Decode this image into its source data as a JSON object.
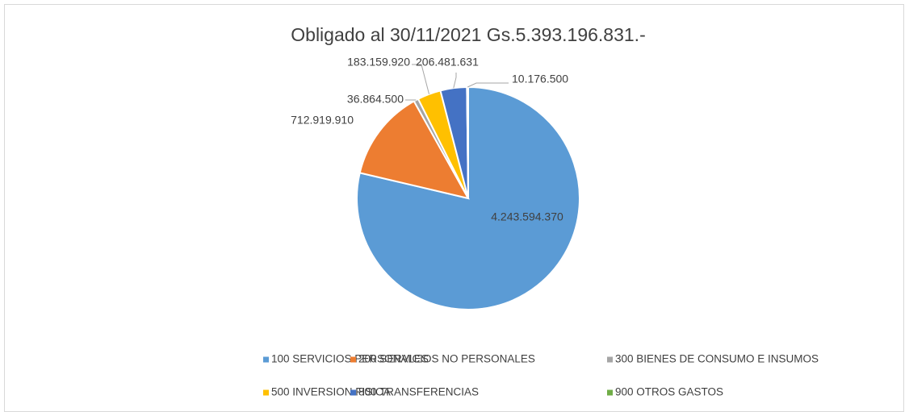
{
  "chart_data": {
    "type": "pie",
    "title": "Obligado al 30/11/2021 Gs.5.393.196.831.-",
    "categories": [
      "100 SERVICIOS PERSONALES",
      "200 SERVICIOS NO PERSONALES",
      "300 BIENES DE CONSUMO E INSUMOS",
      "500 INVERSION FISICA",
      "800 TRANSFERENCIAS",
      "900 OTROS GASTOS"
    ],
    "values": [
      4243594370,
      712919910,
      36864500,
      183159920,
      206481631,
      10176500
    ],
    "value_labels": [
      "4.243.594.370",
      "712.919.910",
      "36.864.500",
      "183.159.920",
      "206.481.631",
      "10.176.500"
    ],
    "colors": [
      "#5b9bd5",
      "#ed7d31",
      "#a5a5a5",
      "#ffc000",
      "#4472c4",
      "#70ad47"
    ]
  }
}
